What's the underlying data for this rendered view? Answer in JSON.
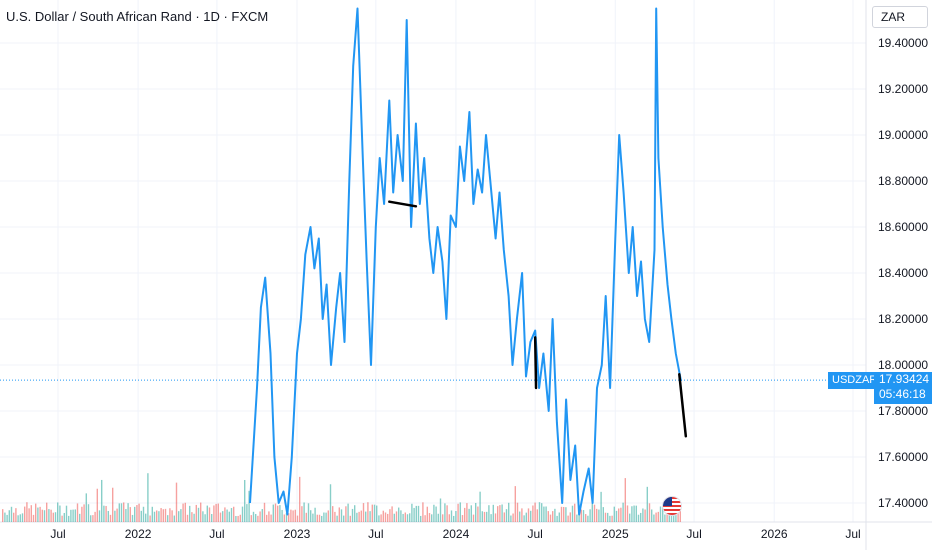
{
  "header": {
    "title": "U.S. Dollar / South African Rand · 1D · FXCM",
    "currency": "ZAR"
  },
  "price_label": {
    "symbol": "USDZAR",
    "price": "17.93424",
    "countdown": "05:46:18"
  },
  "colors": {
    "line": "#2196f3",
    "drawing": "#000000",
    "volume_up": "#26a69a",
    "volume_down": "#ef5350",
    "grid": "#f0f3fa",
    "label_bg": "#2196f3"
  },
  "chart_data": {
    "type": "line",
    "ylim": [
      17.35,
      19.55
    ],
    "y_ticks": [
      "19.40000",
      "19.20000",
      "19.00000",
      "18.80000",
      "18.60000",
      "18.40000",
      "18.20000",
      "18.00000",
      "17.80000",
      "17.60000",
      "17.40000"
    ],
    "y_tick_values": [
      19.4,
      19.2,
      19.0,
      18.8,
      18.6,
      18.4,
      18.2,
      18.0,
      17.8,
      17.6,
      17.4
    ],
    "x_ticks": [
      "Jul",
      "2022",
      "Jul",
      "2023",
      "Jul",
      "2024",
      "Jul",
      "2025",
      "Jul",
      "2026",
      "Jul"
    ],
    "x_tick_dates": [
      "2021-07-01",
      "2022-01-01",
      "2022-07-01",
      "2023-01-01",
      "2023-07-01",
      "2024-01-01",
      "2024-07-01",
      "2025-01-01",
      "2025-07-01",
      "2026-01-01",
      "2026-07-01"
    ],
    "series": [
      {
        "x": [
          "2022-09-15",
          "2022-10-01",
          "2022-10-10",
          "2022-10-20",
          "2022-11-01",
          "2022-11-10",
          "2022-11-20",
          "2022-12-01",
          "2022-12-10",
          "2022-12-20",
          "2023-01-01",
          "2023-01-10",
          "2023-01-20",
          "2023-02-01",
          "2023-02-10",
          "2023-02-20",
          "2023-03-01",
          "2023-03-10",
          "2023-03-20",
          "2023-04-01",
          "2023-04-10",
          "2023-04-20",
          "2023-05-01",
          "2023-05-10",
          "2023-05-20",
          "2023-06-01",
          "2023-06-10",
          "2023-06-20",
          "2023-07-01",
          "2023-07-10",
          "2023-07-20",
          "2023-08-01",
          "2023-08-10",
          "2023-08-20",
          "2023-09-01",
          "2023-09-10",
          "2023-09-20",
          "2023-10-01",
          "2023-10-10",
          "2023-10-20",
          "2023-11-01",
          "2023-11-10",
          "2023-11-20",
          "2023-12-01",
          "2023-12-10",
          "2023-12-20",
          "2024-01-01",
          "2024-01-10",
          "2024-01-20",
          "2024-02-01",
          "2024-02-10",
          "2024-02-20",
          "2024-03-01",
          "2024-03-10",
          "2024-03-20",
          "2024-04-01",
          "2024-04-10",
          "2024-04-20",
          "2024-05-01",
          "2024-05-10",
          "2024-05-20",
          "2024-06-01",
          "2024-06-10",
          "2024-06-20",
          "2024-07-01",
          "2024-07-10",
          "2024-07-20",
          "2024-08-01",
          "2024-08-10",
          "2024-08-20",
          "2024-09-01",
          "2024-09-10",
          "2024-09-20",
          "2024-10-01",
          "2024-10-10",
          "2024-10-20",
          "2024-11-01",
          "2024-11-10",
          "2024-11-20",
          "2024-12-01",
          "2024-12-10",
          "2024-12-20",
          "2025-01-01",
          "2025-01-10",
          "2025-01-20",
          "2025-02-01",
          "2025-02-10",
          "2025-02-20",
          "2025-03-01",
          "2025-03-10",
          "2025-03-20",
          "2025-04-01",
          "2025-04-05",
          "2025-04-10",
          "2025-04-20",
          "2025-05-01",
          "2025-05-10",
          "2025-05-20",
          "2025-06-01"
        ],
        "y": [
          17.4,
          17.9,
          18.25,
          18.38,
          18.05,
          17.6,
          17.4,
          17.45,
          17.35,
          17.6,
          18.05,
          18.2,
          18.48,
          18.6,
          18.42,
          18.55,
          18.2,
          18.35,
          18.0,
          18.25,
          18.4,
          18.1,
          18.8,
          19.3,
          19.55,
          18.9,
          18.45,
          18.0,
          18.6,
          18.9,
          18.7,
          19.15,
          18.75,
          19.0,
          18.8,
          19.5,
          18.6,
          19.05,
          18.7,
          18.9,
          18.55,
          18.4,
          18.6,
          18.45,
          18.2,
          18.65,
          18.6,
          18.95,
          18.8,
          19.1,
          18.7,
          18.85,
          18.75,
          19.0,
          18.8,
          18.55,
          18.75,
          18.5,
          18.3,
          18.0,
          18.2,
          18.4,
          17.95,
          18.1,
          18.15,
          17.9,
          18.05,
          17.8,
          18.2,
          17.75,
          17.4,
          17.85,
          17.5,
          17.65,
          17.35,
          17.45,
          17.55,
          17.4,
          17.9,
          18.0,
          18.3,
          17.9,
          18.55,
          19.0,
          18.75,
          18.4,
          18.6,
          18.3,
          18.45,
          18.2,
          18.1,
          18.5,
          19.55,
          18.9,
          18.6,
          18.35,
          18.2,
          18.05,
          17.93
        ]
      }
    ],
    "drawings": [
      {
        "x": [
          "2023-08-01",
          "2023-10-01"
        ],
        "y": [
          18.71,
          18.69
        ]
      },
      {
        "x": [
          "2024-07-01",
          "2024-07-03"
        ],
        "y": [
          18.12,
          17.9
        ]
      },
      {
        "x": [
          "2025-05-28",
          "2025-06-12"
        ],
        "y": [
          17.96,
          17.69
        ]
      }
    ],
    "last_price": 17.93424,
    "grid": true
  }
}
